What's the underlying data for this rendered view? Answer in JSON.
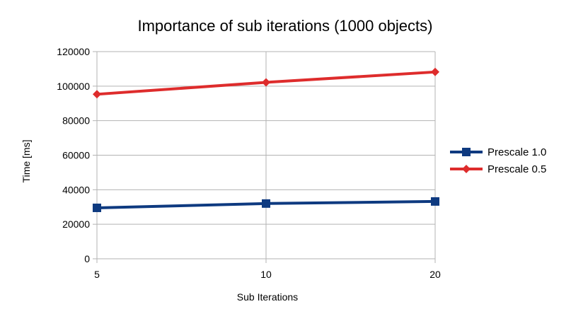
{
  "chart_data": {
    "type": "line",
    "title": "Importance of sub iterations (1000 objects)",
    "xlabel": "Sub Iterations",
    "ylabel": "Time [ms]",
    "categories": [
      "5",
      "10",
      "20"
    ],
    "ylim": [
      0,
      120000
    ],
    "yticks": [
      "0",
      "20000",
      "40000",
      "60000",
      "80000",
      "100000",
      "120000"
    ],
    "grid": true,
    "legend_position": "right",
    "series": [
      {
        "name": "Prescale 1.0",
        "values": [
          29500,
          32000,
          33200
        ],
        "color": "#0e3a80",
        "marker": "square"
      },
      {
        "name": "Prescale 0.5",
        "values": [
          95300,
          102200,
          108200
        ],
        "color": "#de2c2c",
        "marker": "diamond"
      }
    ]
  }
}
